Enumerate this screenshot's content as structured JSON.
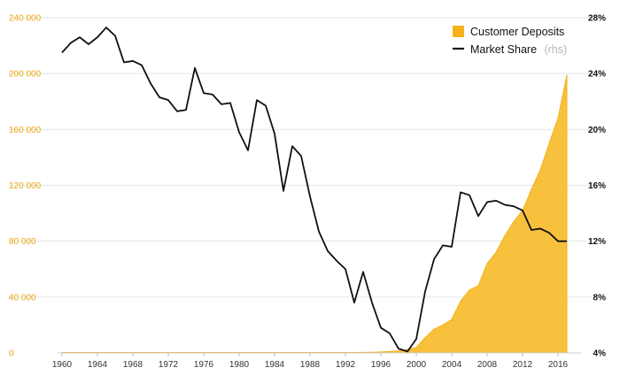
{
  "colors": {
    "deposits": "#f5b21a",
    "deposits_fill": "#f7c13d",
    "market_share": "#111111",
    "left_axis_text": "#e8a70f",
    "right_axis_text": "#111111",
    "grid": "#e6e6e6",
    "muted": "#b5b5b5"
  },
  "legend": {
    "deposits_label": "Customer Deposits",
    "share_label": "Market Share",
    "share_suffix": "(rhs)"
  },
  "chart_data": {
    "type": "area",
    "x_ticks": [
      "1960",
      "1964",
      "1968",
      "1972",
      "1976",
      "1980",
      "1984",
      "1988",
      "1992",
      "1996",
      "2000",
      "2004",
      "2008",
      "2012",
      "2016"
    ],
    "xlim": [
      1960,
      2018
    ],
    "left_axis": {
      "ylim": [
        0,
        240000
      ],
      "tick_values": [
        0,
        40000,
        80000,
        120000,
        160000,
        200000,
        240000
      ],
      "tick_labels": [
        "0",
        "40 000",
        "80 000",
        "120 000",
        "160 000",
        "200 000",
        "240 000"
      ]
    },
    "right_axis": {
      "ylim": [
        4,
        28
      ],
      "tick_values": [
        4,
        8,
        12,
        16,
        20,
        24,
        28
      ],
      "tick_labels": [
        "4%",
        "8%",
        "12%",
        "16%",
        "20%",
        "24%",
        "28%"
      ]
    },
    "grid": true,
    "legend_position": "top-right",
    "series": [
      {
        "name": "Customer Deposits",
        "type": "area",
        "axis": "left",
        "x": [
          1960,
          1961,
          1962,
          1963,
          1964,
          1965,
          1966,
          1967,
          1968,
          1969,
          1970,
          1971,
          1972,
          1973,
          1974,
          1975,
          1976,
          1977,
          1978,
          1979,
          1980,
          1981,
          1982,
          1983,
          1984,
          1985,
          1986,
          1987,
          1988,
          1989,
          1990,
          1991,
          1992,
          1993,
          1994,
          1995,
          1996,
          1997,
          1998,
          1999,
          2000,
          2001,
          2002,
          2003,
          2004,
          2005,
          2006,
          2007,
          2008,
          2009,
          2010,
          2011,
          2012,
          2013,
          2014,
          2015,
          2016,
          2017
        ],
        "values": [
          300,
          300,
          300,
          300,
          300,
          300,
          300,
          300,
          300,
          300,
          300,
          300,
          300,
          300,
          300,
          300,
          300,
          300,
          300,
          300,
          300,
          300,
          300,
          300,
          300,
          300,
          300,
          300,
          300,
          300,
          300,
          300,
          300,
          300,
          400,
          500,
          700,
          1000,
          1500,
          2500,
          4000,
          11000,
          17000,
          20000,
          24000,
          37000,
          45000,
          48000,
          64000,
          72000,
          84000,
          94000,
          102000,
          117000,
          131000,
          150000,
          168000,
          199000
        ]
      },
      {
        "name": "Market Share",
        "type": "line",
        "axis": "right",
        "x": [
          1960,
          1961,
          1962,
          1963,
          1964,
          1965,
          1966,
          1967,
          1968,
          1969,
          1970,
          1971,
          1972,
          1973,
          1974,
          1975,
          1976,
          1977,
          1978,
          1979,
          1980,
          1981,
          1982,
          1983,
          1984,
          1985,
          1986,
          1987,
          1988,
          1989,
          1990,
          1991,
          1992,
          1993,
          1994,
          1995,
          1996,
          1997,
          1998,
          1999,
          2000,
          2001,
          2002,
          2003,
          2004,
          2005,
          2006,
          2007,
          2008,
          2009,
          2010,
          2011,
          2012,
          2013,
          2014,
          2015,
          2016,
          2017
        ],
        "values": [
          25.5,
          26.2,
          26.6,
          26.1,
          26.6,
          27.3,
          26.7,
          24.8,
          24.9,
          24.6,
          23.3,
          22.3,
          22.1,
          21.3,
          21.4,
          24.4,
          22.6,
          22.5,
          21.8,
          21.9,
          19.8,
          18.5,
          22.1,
          21.7,
          19.7,
          15.6,
          18.8,
          18.1,
          15.2,
          12.7,
          11.3,
          10.6,
          10.0,
          7.6,
          9.8,
          7.6,
          5.8,
          5.4,
          4.3,
          4.1,
          5.0,
          8.4,
          10.7,
          11.7,
          11.6,
          15.5,
          15.3,
          13.8,
          14.8,
          14.9,
          14.6,
          14.5,
          14.2,
          12.8,
          12.9,
          12.6,
          12.0,
          12.0
        ]
      }
    ]
  }
}
